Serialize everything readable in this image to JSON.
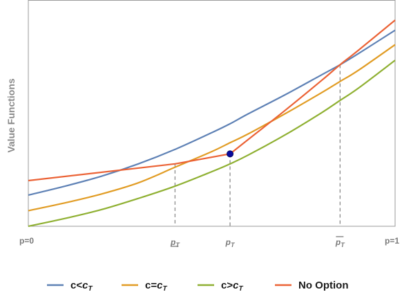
{
  "chart_data": {
    "type": "line",
    "title": "",
    "ylabel": "Value Functions",
    "xlabel": "",
    "xlim": [
      0,
      1
    ],
    "ylim": [
      0,
      1
    ],
    "x_ticks": [
      {
        "x": 0.0,
        "label": "p=0",
        "kind": "plain"
      },
      {
        "x": 0.4,
        "label": "p",
        "kind": "underline"
      },
      {
        "x": 0.55,
        "label": "p",
        "kind": "plain-sub"
      },
      {
        "x": 0.85,
        "label": "p",
        "kind": "overline"
      },
      {
        "x": 1.0,
        "label": "p=1",
        "kind": "plain"
      }
    ],
    "tick_subscript": "T",
    "series": [
      {
        "name": "c<c",
        "name_sub": "T",
        "color": "#5e81b5",
        "x": [
          0,
          0.1,
          0.2,
          0.3,
          0.4,
          0.5,
          0.55,
          0.6,
          0.7,
          0.8,
          0.85,
          0.9,
          1.0
        ],
        "y": [
          0.14,
          0.18,
          0.225,
          0.28,
          0.345,
          0.42,
          0.46,
          0.505,
          0.59,
          0.68,
          0.725,
          0.775,
          0.88
        ]
      },
      {
        "name": "c=c",
        "name_sub": "T",
        "color": "#e19c24",
        "x": [
          0,
          0.1,
          0.2,
          0.3,
          0.4,
          0.5,
          0.55,
          0.6,
          0.7,
          0.8,
          0.85,
          0.9,
          1.0
        ],
        "y": [
          0.07,
          0.105,
          0.145,
          0.195,
          0.265,
          0.335,
          0.375,
          0.415,
          0.505,
          0.6,
          0.65,
          0.7,
          0.815
        ]
      },
      {
        "name": "c>c",
        "name_sub": "T",
        "color": "#8fb032",
        "x": [
          0,
          0.1,
          0.2,
          0.3,
          0.4,
          0.5,
          0.55,
          0.6,
          0.7,
          0.8,
          0.85,
          0.9,
          1.0
        ],
        "y": [
          0.0,
          0.035,
          0.075,
          0.125,
          0.18,
          0.245,
          0.28,
          0.32,
          0.41,
          0.51,
          0.565,
          0.62,
          0.745
        ]
      },
      {
        "name": "No Option",
        "name_sub": "",
        "color": "#eb6235",
        "x": [
          0,
          0.4,
          0.55,
          0.6,
          0.7,
          0.8,
          0.85,
          0.9,
          1.0
        ],
        "y": [
          0.205,
          0.28,
          0.325,
          0.39,
          0.52,
          0.655,
          0.725,
          0.79,
          0.925
        ]
      }
    ],
    "marker": {
      "x": 0.55,
      "y": 0.325,
      "color": "#0a0a9e"
    },
    "guides": [
      {
        "x": 0.4,
        "y": 0.28
      },
      {
        "x": 0.55,
        "y": 0.325
      },
      {
        "x": 0.85,
        "y": 0.725
      }
    ],
    "grid": false,
    "legend_position": "bottom"
  }
}
